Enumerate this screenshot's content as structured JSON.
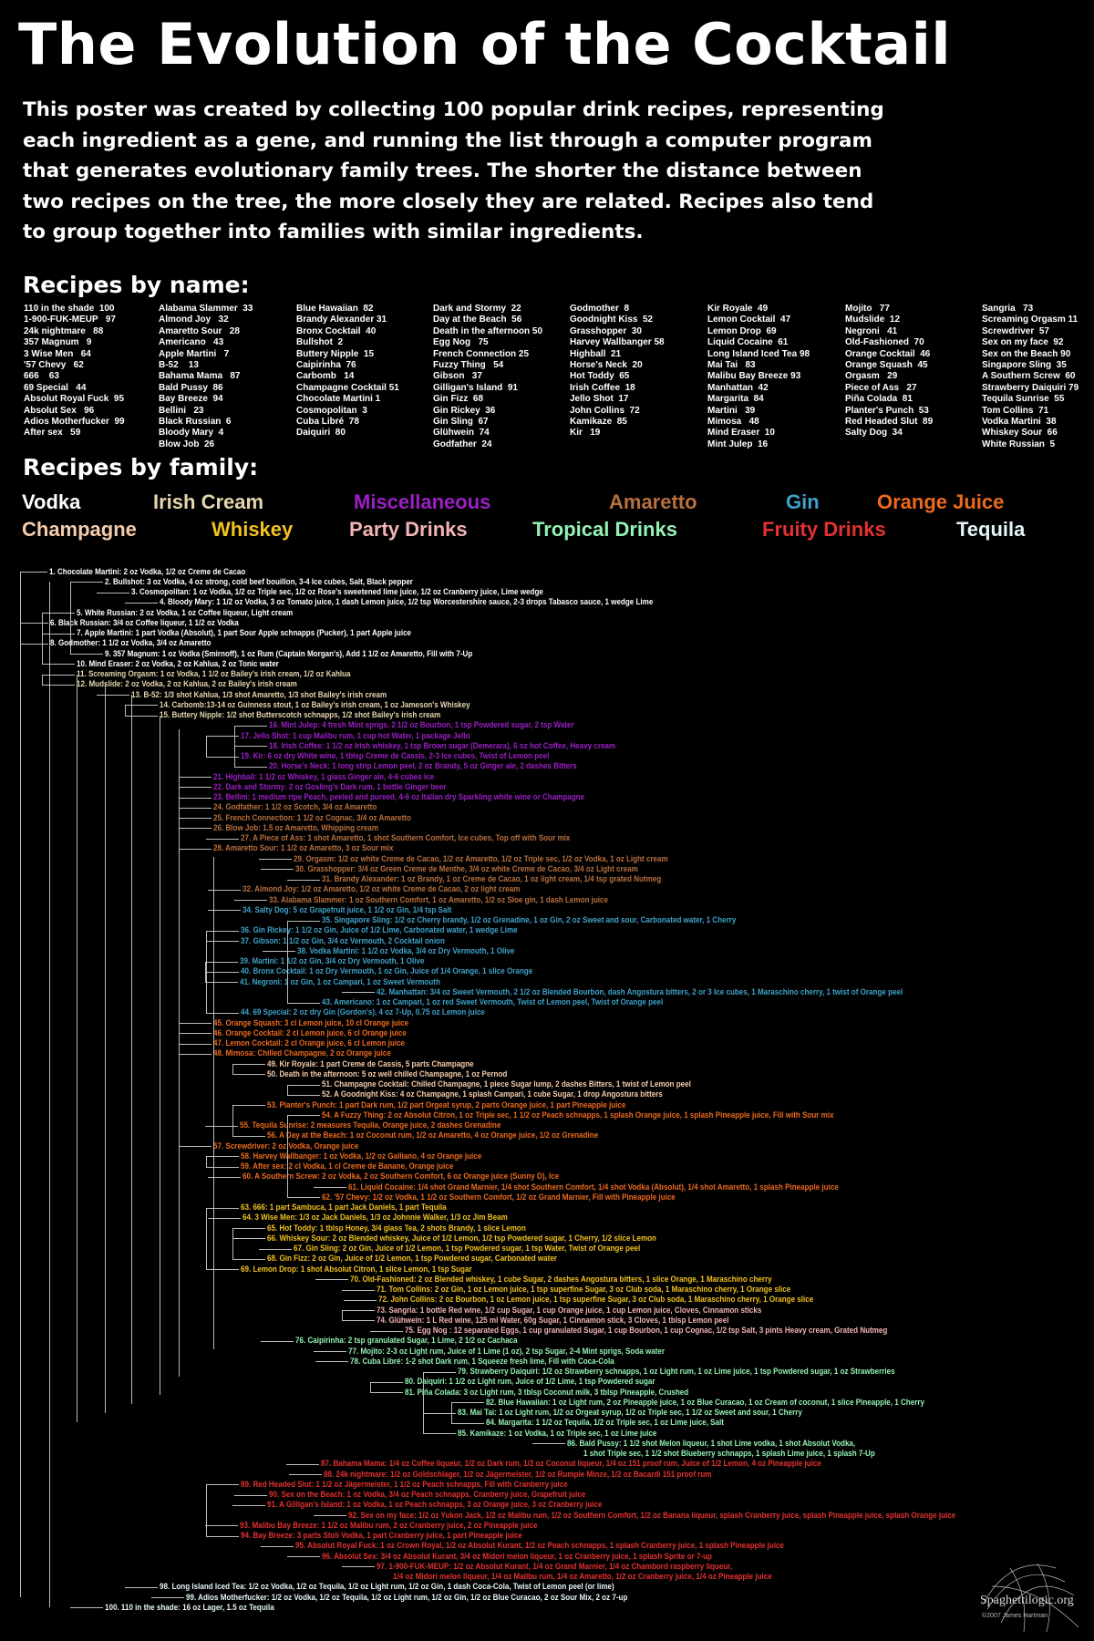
{
  "title": "The Evolution of the Cocktail",
  "intro_lines": [
    "This poster was created by collecting 100 popular drink recipes, representing",
    "each ingredient as a gene, and running the list through a computer program",
    "that generates evolutionary family trees.  The shorter the distance between",
    "two recipes on the tree, the more closely they are related.  Recipes also tend",
    "to group together into families with similar ingredients."
  ],
  "names_heading": "Recipes by name:",
  "name_columns": [
    [
      "110 in the shade  100",
      "1-900-FUK-MEUP   97",
      "24k nightmare   88",
      "357 Magnum   9",
      "3 Wise Men   64",
      "'57 Chevy   62",
      "666    63",
      "69 Special   44",
      "Absolut Royal Fuck  95",
      "Absolut Sex   96",
      "Adios Motherfucker  99",
      "After sex   59"
    ],
    [
      "Alabama Slammer  33",
      "Almond Joy   32",
      "Amaretto Sour   28",
      "Americano   43",
      "Apple Martini   7",
      "B-52    13",
      "Bahama Mama   87",
      "Bald Pussy  86",
      "Bay Breeze  94",
      "Bellini   23",
      "Black Russian  6",
      "Bloody Mary  4",
      "Blow Job  26"
    ],
    [
      "Blue Hawaiian  82",
      "Brandy Alexander 31",
      "Bronx Cocktail  40",
      "Bullshot  2",
      "Buttery Nipple  15",
      "Caipirinha  76",
      "Carbomb   14",
      "Champagne Cocktail 51",
      "Chocolate Martini 1",
      "Cosmopolitan  3",
      "Cuba Libré  78",
      "Daiquiri  80"
    ],
    [
      "Dark and Stormy  22",
      "Day at the Beach  56",
      "Death in the afternoon 50",
      "Egg Nog   75",
      "French Connection 25",
      "Fuzzy Thing   54",
      "Gibson   37",
      "Gilligan's Island  91",
      "Gin Fizz  68",
      "Gin Rickey  36",
      "Gin Sling  67",
      "Glühwein  74",
      "Godfather  24"
    ],
    [
      "Godmother  8",
      "Goodnight Kiss  52",
      "Grasshopper  30",
      "Harvey Wallbanger 58",
      "Highball  21",
      "Horse's Neck  20",
      "Hot Toddy  65",
      "Irish Coffee  18",
      "Jello Shot  17",
      "John Collins  72",
      "Kamikaze  85",
      "Kir   19"
    ],
    [
      "Kir Royale  49",
      "Lemon Cocktail  47",
      "Lemon Drop  69",
      "Liquid Cocaine  61",
      "Long Island Iced Tea 98",
      "Mai Tai   83",
      "Malibu Bay Breeze 93",
      "Manhattan  42",
      "Margarita  84",
      "Martini   39",
      "Mimosa   48",
      "Mind Eraser  10",
      "Mint Julep  16"
    ],
    [
      "Mojito   77",
      "Mudslide  12",
      "Negroni   41",
      "Old-Fashioned  70",
      "Orange Cocktail  46",
      "Orange Squash  45",
      "Orgasm   29",
      "Piece of Ass   27",
      "Piña Colada  81",
      "Planter's Punch  53",
      "Red Headed Slut  89",
      "Salty Dog  34"
    ],
    [
      "Sangria   73",
      "Screaming Orgasm 11",
      "Screwdriver  57",
      "Sex on my face  92",
      "Sex on the Beach 90",
      "Singapore Sling  35",
      "A Southern Screw  60",
      "Strawberry Daiquiri 79",
      "Tequila Sunrise  55",
      "Tom Collins  71",
      "Vodka Martini  38",
      "Whiskey Sour  66",
      "White Russian  5"
    ]
  ],
  "families_heading": "Recipes by family:",
  "families": {
    "vodka": {
      "label": "Vodka",
      "color": "#ffffff"
    },
    "irish": {
      "label": "Irish Cream",
      "color": "#e6d6ae"
    },
    "misc": {
      "label": "Miscellaneous",
      "color": "#9b1fc4"
    },
    "amaretto": {
      "label": "Amaretto",
      "color": "#b8703e"
    },
    "gin": {
      "label": "Gin",
      "color": "#3fa2c9"
    },
    "oj": {
      "label": "Orange Juice",
      "color": "#ec6a1e"
    },
    "champagne": {
      "label": "Champagne",
      "color": "#f6ccaa"
    },
    "whiskey": {
      "label": "Whiskey",
      "color": "#f2c21e"
    },
    "party": {
      "label": "Party Drinks",
      "color": "#f2b4b4"
    },
    "tropical": {
      "label": "Tropical Drinks",
      "color": "#94f2b4"
    },
    "fruity": {
      "label": "Fruity Drinks",
      "color": "#e43030"
    },
    "tequila": {
      "label": "Tequila",
      "color": "#e4f4f8"
    }
  },
  "family_order": [
    "vodka",
    "irish",
    "misc",
    "amaretto",
    "gin",
    "oj",
    "champagne",
    "whiskey",
    "party",
    "tropical",
    "fruity",
    "tequila"
  ],
  "recipes": [
    {
      "text": "1. Chocolate Martini: 2 oz Vodka, 1/2 oz Creme de Cacao",
      "family": "vodka"
    },
    {
      "text": "2. Bullshot: 3 oz Vodka, 4 oz strong, cold beef bouillon, 3-4 Ice cubes, Salt, Black pepper",
      "family": "vodka"
    },
    {
      "text": "3. Cosmopolitan: 1 oz Vodka, 1/2 oz Triple sec, 1/2 oz Rose's sweetened lime juice, 1/2 oz Cranberry juice, Lime wedge",
      "family": "vodka"
    },
    {
      "text": "4. Bloody Mary: 1 1/2 oz Vodka, 3 oz Tomato juice, 1 dash Lemon juice, 1/2 tsp Worcestershire sauce, 2-3 drops Tabasco sauce, 1 wedge Lime",
      "family": "vodka"
    },
    {
      "text": "5. White Russian: 2 oz Vodka, 1 oz Coffee liqueur, Light cream",
      "family": "vodka"
    },
    {
      "text": "6. Black Russian: 3/4 oz Coffee liqueur, 1 1/2 oz Vodka",
      "family": "vodka"
    },
    {
      "text": "7. Apple Martini: 1 part Vodka (Absolut), 1 part Sour Apple schnapps (Pucker), 1 part Apple juice",
      "family": "vodka"
    },
    {
      "text": "8. Godmother: 1 1/2 oz Vodka, 3/4 oz Amaretto",
      "family": "vodka"
    },
    {
      "text": "9. 357 Magnum: 1 oz Vodka (Smirnoff), 1 oz Rum (Captain Morgan's), Add 1 1/2 oz Amaretto, Fill with 7-Up",
      "family": "vodka"
    },
    {
      "text": "10. Mind Eraser: 2 oz Vodka, 2 oz Kahlua, 2 oz Tonic water",
      "family": "vodka"
    },
    {
      "text": "11. Screaming Orgasm: 1 oz Vodka, 1 1/2 oz Bailey's irish cream, 1/2 oz Kahlua",
      "family": "irish"
    },
    {
      "text": "12. Mudslide: 2 oz Vodka, 2 oz Kahlua, 2 oz Bailey's irish cream",
      "family": "irish"
    },
    {
      "text": "13. B-52: 1/3 shot Kahlua, 1/3 shot Amaretto, 1/3 shot Bailey's irish cream",
      "family": "irish"
    },
    {
      "text": "14. Carbomb:13-14 oz Guinness stout, 1 oz Bailey's irish cream, 1 oz Jameson's Whiskey",
      "family": "irish"
    },
    {
      "text": "15. Buttery Nipple: 1/2 shot Butterscotch schnapps, 1/2 shot Bailey's irish cream",
      "family": "irish"
    },
    {
      "text": "16. Mint Julep: 4 fresh Mint sprigs, 2 1/2 oz Bourbon, 1 tsp Powdered sugar, 2 tsp Water",
      "family": "misc"
    },
    {
      "text": "17. Jello Shot: 1 cup Malibu rum, 1 cup hot Water, 1 package Jello",
      "family": "misc"
    },
    {
      "text": "18. Irish Coffee: 1 1/2 oz Irish whiskey, 1 tsp Brown sugar (Demerara), 6 oz hot Coffee, Heavy cream",
      "family": "misc"
    },
    {
      "text": "19. Kir: 6 oz dry White wine, 1 tblsp Creme de Cassis, 2-3 Ice cubes, Twist of Lemon peel",
      "family": "misc"
    },
    {
      "text": "20. Horse's Neck: 1 long strip Lemon peel, 2 oz Brandy, 5 oz Ginger ale, 2 dashes Bitters",
      "family": "misc"
    },
    {
      "text": "21. Highball: 1 1/2 oz Whiskey, 1 glass Ginger ale, 4-6 cubes Ice",
      "family": "misc"
    },
    {
      "text": "22. Dark and Stormy: 2 oz Gosling's Dark rum, 1 bottle Ginger beer",
      "family": "misc"
    },
    {
      "text": "23. Bellini: 1 medium ripe Peach, peeled and pureed, 4-6 oz Italian dry Sparkling white wine or Champagne",
      "family": "misc"
    },
    {
      "text": "24. Godfather: 1 1/2 oz Scotch, 3/4 oz Amaretto",
      "family": "amaretto"
    },
    {
      "text": "25. French Connection: 1 1/2 oz Cognac, 3/4 oz Amaretto",
      "family": "amaretto"
    },
    {
      "text": "26. Blow Job: 1.5 oz Amaretto, Whipping cream",
      "family": "amaretto"
    },
    {
      "text": "27. A Piece of Ass: 1 shot Amaretto, 1 shot Southern Comfort, Ice cubes, Top off with Sour mix",
      "family": "amaretto"
    },
    {
      "text": "28. Amaretto Sour: 1 1/2 oz Amaretto, 3 oz Sour mix",
      "family": "amaretto"
    },
    {
      "text": "29. Orgasm: 1/2 oz white Creme de Cacao, 1/2 oz Amaretto, 1/2 oz Triple sec, 1/2 oz Vodka, 1 oz Light cream",
      "family": "amaretto"
    },
    {
      "text": "30. Grasshopper: 3/4 oz Green Creme de Menthe, 3/4 oz white Creme de Cacao, 3/4 oz Light cream",
      "family": "amaretto"
    },
    {
      "text": "31. Brandy Alexander: 1 oz Brandy, 1 oz Creme de Cacao, 1 oz light cream, 1/4 tsp grated Nutmeg",
      "family": "amaretto"
    },
    {
      "text": "32. Almond Joy: 1/2 oz Amaretto, 1/2 oz white Creme de Cacao, 2 oz light cream",
      "family": "amaretto"
    },
    {
      "text": "33. Alabama Slammer: 1 oz Southern Comfort, 1 oz Amaretto, 1/2 oz Sloe gin, 1 dash Lemon juice",
      "family": "amaretto"
    },
    {
      "text": "34. Salty Dog: 5 oz Grapefruit juice, 1 1/2 oz Gin, 1/4 tsp Salt",
      "family": "gin"
    },
    {
      "text": "35. Singapore Sling: 1/2 oz Cherry brandy, 1/2 oz Grenadine, 1 oz Gin, 2 oz Sweet and sour, Carbonated water, 1 Cherry",
      "family": "gin"
    },
    {
      "text": "36. Gin Rickey: 1 1/2 oz Gin, Juice of 1/2 Lime, Carbonated water, 1 wedge Lime",
      "family": "gin"
    },
    {
      "text": "37. Gibson: 1 1/2 oz Gin, 3/4 oz Vermouth, 2 Cocktail onion",
      "family": "gin"
    },
    {
      "text": "38. Vodka Martini: 1 1/2 oz Vodka, 3/4 oz Dry Vermouth, 1 Olive",
      "family": "gin"
    },
    {
      "text": "39. Martini: 1 1/2 oz Gin, 3/4 oz Dry Vermouth, 1 Olive",
      "family": "gin"
    },
    {
      "text": "40. Bronx Cocktail: 1 oz Dry Vermouth, 1 oz Gin, Juice of 1/4 Orange, 1 slice Orange",
      "family": "gin"
    },
    {
      "text": "41. Negroni: 1 oz Gin, 1 oz Campari, 1 oz Sweet Vermouth",
      "family": "gin"
    },
    {
      "text": "42. Manhattan: 3/4 oz Sweet Vermouth, 2 1/2 oz Blended Bourbon, dash Angostura bitters, 2 or 3 Ice cubes, 1 Maraschino cherry, 1 twist of Orange peel",
      "family": "gin"
    },
    {
      "text": "43. Americano: 1 oz Campari, 1 oz red Sweet Vermouth, Twist of Lemon peel, Twist of Orange peel",
      "family": "gin"
    },
    {
      "text": "44. 69 Special: 2 oz dry Gin (Gordon's), 4 oz 7-Up, 0.75 oz Lemon juice",
      "family": "gin"
    },
    {
      "text": "45. Orange Squash: 3 cl Lemon juice, 10 cl Orange juice",
      "family": "oj"
    },
    {
      "text": "46. Orange Cocktail: 2 cl Lemon juice, 6 cl Orange juice",
      "family": "oj"
    },
    {
      "text": "47. Lemon Cocktail: 2 cl Orange juice, 6 cl Lemon juice",
      "family": "oj"
    },
    {
      "text": "48. Mimosa: Chilled Champagne, 2 oz Orange juice",
      "family": "oj"
    },
    {
      "text": "49. Kir Royale: 1 part Creme de Cassis, 5 parts Champagne",
      "family": "champagne"
    },
    {
      "text": "50. Death in the afternoon: 5 oz well chilled Champagne, 1 oz Pernod",
      "family": "champagne"
    },
    {
      "text": "51. Champagne Cocktail: Chilled Champagne, 1 piece Sugar lump, 2 dashes Bitters, 1 twist of Lemon peel",
      "family": "champagne"
    },
    {
      "text": "52. A Goodnight Kiss: 4 oz Champagne, 1 splash Campari, 1 cube Sugar, 1 drop Angostura bitters",
      "family": "champagne"
    },
    {
      "text": "53. Planter's Punch: 1 part Dark rum, 1/2 part Orgeat syrup, 2 parts Orange juice, 1 part Pineapple juice",
      "family": "oj"
    },
    {
      "text": "54. A Fuzzy Thing: 2 oz Absolut Citron, 1 oz Triple sec, 1 1/2 oz Peach schnapps, 1 splash Orange juice, 1 splash Pineapple juice, Fill with Sour mix",
      "family": "oj"
    },
    {
      "text": "55. Tequila Sunrise: 2 measures Tequila, Orange juice, 2 dashes Grenadine",
      "family": "oj"
    },
    {
      "text": "56. A Day at the Beach: 1 oz Coconut rum, 1/2 oz Amaretto, 4 oz Orange juice, 1/2 oz Grenadine",
      "family": "oj"
    },
    {
      "text": "57. Screwdriver: 2 oz Vodka, Orange juice",
      "family": "oj"
    },
    {
      "text": "58. Harvey Wallbanger: 1 oz Vodka, 1/2 oz Galliano, 4 oz Orange juice",
      "family": "oj"
    },
    {
      "text": "59. After sex: 2 cl Vodka, 1 cl Creme de Banane, Orange juice",
      "family": "oj"
    },
    {
      "text": "60. A Southern Screw: 2 oz Vodka, 2 oz Southern Comfort, 6 oz Orange juice (Sunny D), Ice",
      "family": "oj"
    },
    {
      "text": "61. Liquid Cocaine: 1/4 shot Grand Marnier, 1/4 shot Southern Comfort, 1/4 shot Vodka (Absolut), 1/4 shot Amaretto, 1 splash Pineapple juice",
      "family": "oj"
    },
    {
      "text": "62. '57 Chevy: 1/2 oz Vodka, 1 1/2 oz Southern Comfort, 1/2 oz Grand Marnier, Fill with Pineapple juice",
      "family": "oj"
    },
    {
      "text": "63. 666: 1 part Sambuca, 1 part Jack Daniels, 1 part Tequila",
      "family": "whiskey"
    },
    {
      "text": "64. 3 Wise Men: 1/3 oz Jack Daniels, 1/3 oz Johnnie Walker, 1/3 oz Jim Beam",
      "family": "whiskey"
    },
    {
      "text": "65. Hot Toddy: 1 tblsp Honey, 3/4 glass Tea, 2 shots Brandy, 1 slice Lemon",
      "family": "whiskey"
    },
    {
      "text": "66. Whiskey Sour: 2 oz Blended whiskey, Juice of 1/2 Lemon, 1/2 tsp Powdered sugar, 1 Cherry, 1/2 slice Lemon",
      "family": "whiskey"
    },
    {
      "text": "67. Gin Sling: 2 oz Gin, Juice of 1/2 Lemon, 1 tsp Powdered sugar, 1 tsp Water, Twist of Orange peel",
      "family": "whiskey"
    },
    {
      "text": "68. Gin Fizz: 2 oz Gin, Juice of 1/2 Lemon, 1 tsp Powdered sugar, Carbonated water",
      "family": "whiskey"
    },
    {
      "text": "69. Lemon Drop: 1 shot Absolut Citron, 1 slice Lemon, 1 tsp Sugar",
      "family": "whiskey"
    },
    {
      "text": "70. Old-Fashioned: 2 oz Blended whiskey, 1 cube Sugar, 2 dashes Angostura bitters, 1 slice Orange, 1 Maraschino cherry",
      "family": "whiskey"
    },
    {
      "text": "71. Tom Collins: 2 oz Gin, 1 oz Lemon juice, 1 tsp superfine Sugar, 3 oz Club soda, 1 Maraschino cherry, 1 Orange slice",
      "family": "whiskey"
    },
    {
      "text": "72. John Collins: 2 oz Bourbon, 1 oz Lemon juice, 1 tsp superfine Sugar, 3 oz Club soda, 1 Maraschino cherry, 1 Orange slice",
      "family": "whiskey"
    },
    {
      "text": "73. Sangria: 1 bottle Red wine, 1/2 cup Sugar, 1 cup Orange juice, 1 cup Lemon juice, Cloves, Cinnamon sticks",
      "family": "party"
    },
    {
      "text": "74. Glühwein: 1 L Red wine, 125 ml Water, 60g Sugar, 1 Cinnamon stick, 3 Cloves, 1 tblsp Lemon peel",
      "family": "party"
    },
    {
      "text": "75. Egg Nog : 12 separated Eggs, 1 cup granulated Sugar, 1 cup Bourbon, 1 cup Cognac, 1/2 tsp Salt, 3 pints Heavy cream, Grated Nutmeg",
      "family": "party"
    },
    {
      "text": "76. Caipirinha: 2 tsp granulated Sugar, 1 Lime, 2 1/2 oz Cachaca",
      "family": "tropical"
    },
    {
      "text": "77. Mojito: 2-3 oz Light rum, Juice of 1 Lime (1 oz), 2 tsp Sugar, 2-4 Mint sprigs, Soda water",
      "family": "tropical"
    },
    {
      "text": "78. Cuba Libré: 1-2 shot Dark rum, 1 Squeeze fresh lime, Fill with Coca-Cola",
      "family": "tropical"
    },
    {
      "text": "79. Strawberry Daiquiri: 1/2 oz Strawberry schnapps, 1 oz Light rum, 1 oz Lime juice, 1 tsp Powdered sugar, 1 oz Strawberries",
      "family": "tropical"
    },
    {
      "text": "80. Daiquiri: 1 1/2 oz Light rum, Juice of 1/2 Lime, 1 tsp Powdered sugar",
      "family": "tropical"
    },
    {
      "text": "81. Piña Colada: 3 oz Light rum, 3 tblsp Coconut milk, 3 tblsp Pineapple, Crushed",
      "family": "tropical"
    },
    {
      "text": "82. Blue Hawaiian: 1 oz Light rum, 2 oz Pineapple juice, 1 oz Blue Curacao, 1 oz Cream of coconut, 1 slice Pineapple, 1 Cherry",
      "family": "tropical"
    },
    {
      "text": "83. Mai Tai: 1 oz Light rum, 1/2 oz Orgeat syrup, 1/2 oz Triple sec, 1 1/2 oz Sweet and sour, 1 Cherry",
      "family": "tropical"
    },
    {
      "text": "84. Margarita: 1 1/2 oz Tequila, 1/2 oz Triple sec, 1 oz Lime juice, Salt",
      "family": "tropical"
    },
    {
      "text": "85. Kamikaze: 1 oz Vodka, 1 oz Triple sec, 1 oz Lime juice",
      "family": "tropical"
    },
    {
      "text": "86. Bald Pussy: 1 1/2 shot Melon liqueur, 1 shot Lime vodka, 1 shot Absolut Vodka,",
      "text2": "1 shot Triple sec, 1 1/2 shot Blueberry schnapps, 1 splash Lime juice, 1 splash 7-Up",
      "family": "tropical"
    },
    {
      "text": "87. Bahama Mama: 1/4 oz Coffee liqueur, 1/2 oz Dark rum, 1/2 oz Coconut liqueur, 1/4 oz 151 proof rum, Juice of 1/2 Lemon, 4 oz Pineapple juice",
      "family": "fruity"
    },
    {
      "text": "88. 24k nightmare: 1/2 oz Goldschlager, 1/2 oz Jägermeister, 1/2 oz Rumple Minze, 1/2 oz Bacardi 151 proof rum",
      "family": "fruity"
    },
    {
      "text": "89. Red Headed Slut: 1 1/2 oz Jägermeister, 1 1/2 oz Peach schnapps, Fill with Cranberry juice",
      "family": "fruity"
    },
    {
      "text": "90. Sex on the Beach: 1 oz Vodka, 3/4 oz Peach schnapps, Cranberry juice, Grapefruit juice",
      "family": "fruity"
    },
    {
      "text": "91. A Gilligan's Island: 1 oz Vodka, 1 oz Peach schnapps, 3 oz Orange juice, 3 oz Cranberry juice",
      "family": "fruity"
    },
    {
      "text": "92. Sex on my face: 1/2 oz Yukon Jack, 1/2 oz Malibu rum, 1/2 oz Southern Comfort, 1/2 oz Banana liqueur, splash Cranberry juice, splash Pineapple juice, splash Orange juice",
      "family": "fruity"
    },
    {
      "text": "93. Malibu Bay Breeze: 1 1/2 oz Malibu rum, 2 oz Cranberry juice, 2 oz Pineapple juice",
      "family": "fruity"
    },
    {
      "text": "94. Bay Breeze: 3 parts Stoli Vodka, 1 part Cranberry juice, 1 part Pineapple juice",
      "family": "fruity"
    },
    {
      "text": "95. Absolut Royal Fuck: 1 oz Crown Royal, 1/2 oz Absolut Kurant, 1/2 oz Peach schnapps, 1 splash Cranberry juice, 1 splash Pineapple juice",
      "family": "fruity"
    },
    {
      "text": "96. Absolut Sex: 3/4 oz Absolut Kurant, 3/4 oz Midori melon liqueur, 1 oz Cranberry juice, 1 splash Sprite or 7-up",
      "family": "fruity"
    },
    {
      "text": "97. 1-900-FUK-MEUP: 1/2 oz Absolut Kurant, 1/4 oz Grand Marnier, 1/4 oz Chambord raspberry liqueur,",
      "text2": "1/4 oz Midori melon liqueur, 1/4 oz Malibu rum, 1/4 oz Amaretto, 1/2 oz Cranberry juice, 1/4 oz Pineapple juice",
      "family": "fruity"
    },
    {
      "text": "98. Long Island Iced Tea: 1/2 oz Vodka, 1/2 oz Tequila, 1/2 oz Light rum, 1/2 oz Gin, 1 dash Coca-Cola, Twist of Lemon peel (or lime)",
      "family": "tequila"
    },
    {
      "text": "99. Adios Motherfucker: 1/2 oz Vodka, 1/2 oz Tequila, 1/2 oz Light rum, 1/2 oz Gin, 1/2 oz Blue Curacao, 2 oz Sour Mix, 2 oz 7-up",
      "family": "tequila"
    },
    {
      "text": "100. 110 in the shade: 16 oz Lager, 1.5 oz Tequila",
      "family": "tequila"
    }
  ],
  "logo": {
    "name": "Spaghettilogic.org",
    "credit": "©2007 James Hartman"
  }
}
